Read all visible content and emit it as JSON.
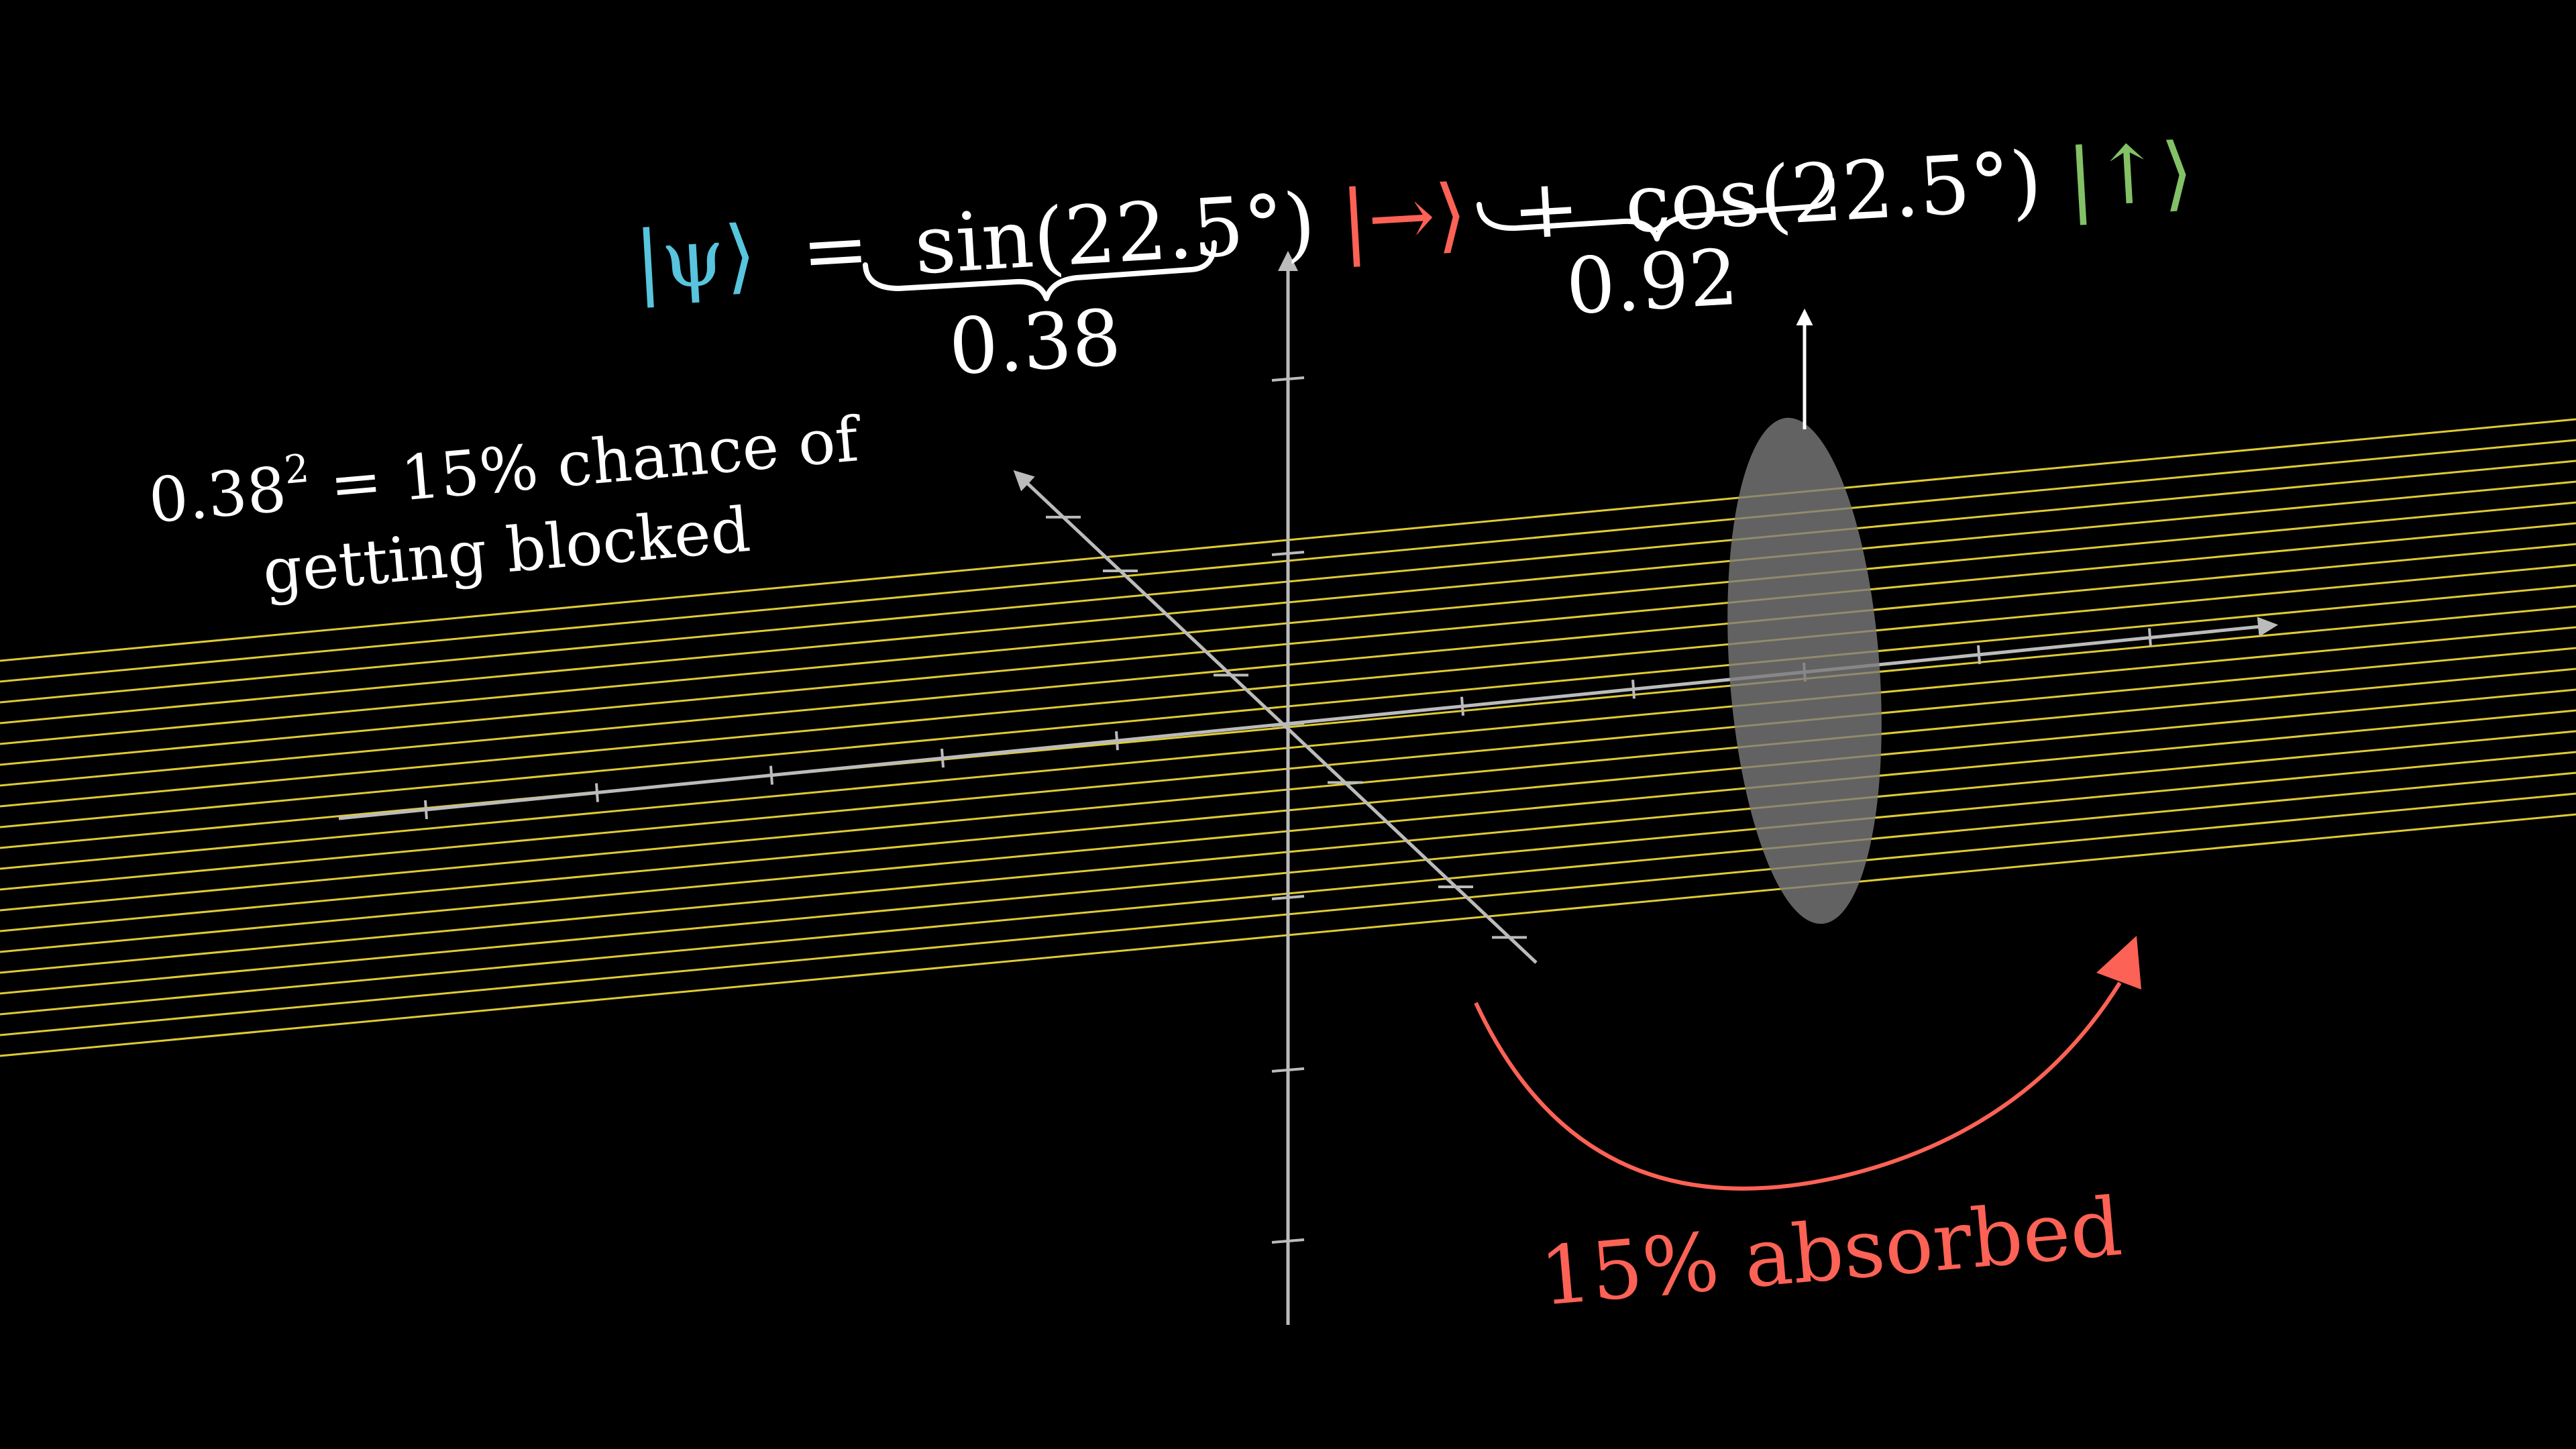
{
  "equation": {
    "ket_psi": "|ψ⟩",
    "equals": "=",
    "sin_term": "sin(22.5°)",
    "ket_right": "|→⟩",
    "plus": "+",
    "cos_term": "cos(22.5°)",
    "ket_up": "|↑⟩",
    "sin_value": "0.38",
    "cos_value": "0.92"
  },
  "note": {
    "prefix": "0.38",
    "exponent": "2",
    "suffix": " = 15% chance of",
    "line2": "getting blocked"
  },
  "absorbed_label": "15% absorbed",
  "colors": {
    "background": "#000000",
    "psi": "#58C4DD",
    "right_ket": "#FC6255",
    "up_ket": "#83C167",
    "light_beam": "#F7E03C",
    "axes": "#BBBBBB",
    "filter": "#7A7A7A",
    "arrow": "#FC6255",
    "text": "#FFFFFF"
  },
  "beam": {
    "line_count": 20
  },
  "icons": [
    "filter-ellipse",
    "vertical-polarization-arrow",
    "rotation-arrow"
  ]
}
